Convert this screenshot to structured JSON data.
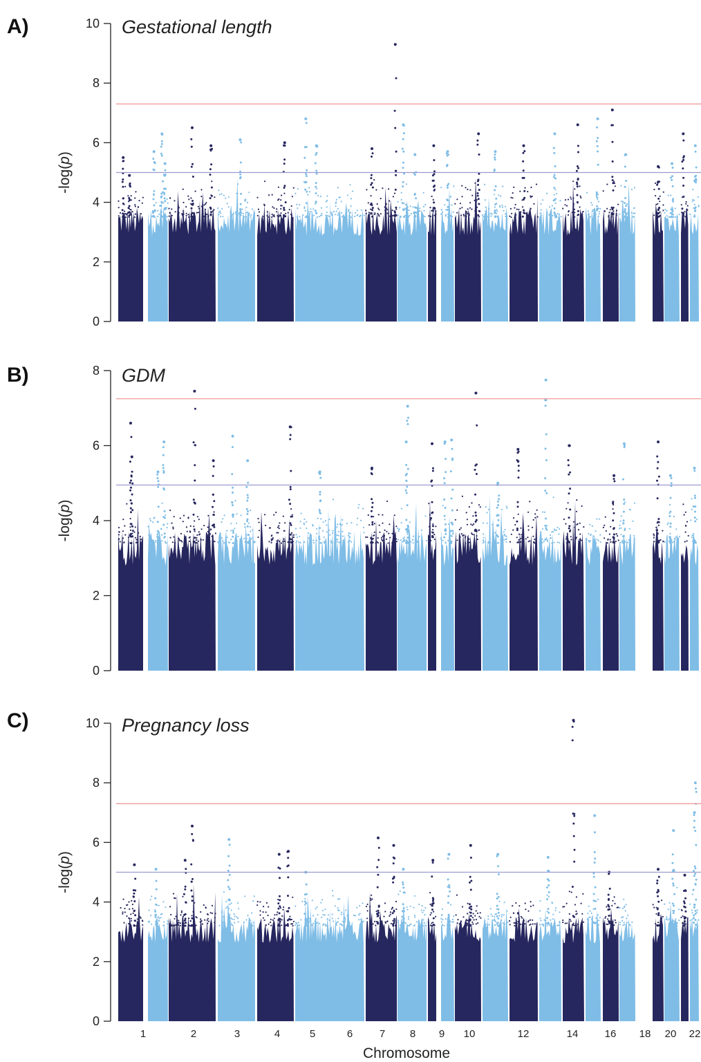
{
  "figure": {
    "xlabel": "Chromosome",
    "chromosome_tick_labels": [
      "1",
      "2",
      "3",
      "4",
      "5",
      "6",
      "7",
      "8",
      "9",
      "10",
      "12",
      "14",
      "16",
      "18",
      "20",
      "22"
    ]
  },
  "colors": {
    "dark_points": "#27275f",
    "light_points": "#7fbde6",
    "genome_wide_line": "#f2a0a0",
    "suggestive_line": "#9a9acf",
    "axis": "#222222"
  },
  "chart_data": [
    {
      "type": "scatter",
      "panel_letter": "A)",
      "title": "Gestational length",
      "xlabel": "Chromosome",
      "ylabel": "-log(p)",
      "ylim": [
        0,
        10
      ],
      "yticks": [
        0,
        2,
        4,
        6,
        8,
        10
      ],
      "genome_wide_threshold": 7.3,
      "suggestive_threshold": 5.0,
      "chromosome_background_height": 3.5,
      "peaks": [
        {
          "chr": 1,
          "pos": 0.2,
          "y": 5.5
        },
        {
          "chr": 1,
          "pos": 0.45,
          "y": 4.9
        },
        {
          "chr": 2,
          "pos": 0.3,
          "y": 5.7
        },
        {
          "chr": 2,
          "pos": 0.7,
          "y": 6.3
        },
        {
          "chr": 2,
          "pos": 0.85,
          "y": 5.3
        },
        {
          "chr": 3,
          "pos": 0.5,
          "y": 6.5
        },
        {
          "chr": 3,
          "pos": 0.9,
          "y": 5.9
        },
        {
          "chr": 4,
          "pos": 0.6,
          "y": 6.1
        },
        {
          "chr": 5,
          "pos": 0.75,
          "y": 6.0
        },
        {
          "chr": 6,
          "pos": 0.3,
          "y": 6.8
        },
        {
          "chr": 6,
          "pos": 0.6,
          "y": 5.9
        },
        {
          "chr": 7,
          "pos": 0.2,
          "y": 5.8
        },
        {
          "chr": 7,
          "pos": 0.95,
          "y": 9.3
        },
        {
          "chr": 8,
          "pos": 0.2,
          "y": 6.6
        },
        {
          "chr": 8,
          "pos": 0.6,
          "y": 5.6
        },
        {
          "chr": 9,
          "pos": 0.7,
          "y": 5.9
        },
        {
          "chr": 10,
          "pos": 0.5,
          "y": 5.7
        },
        {
          "chr": 11,
          "pos": 0.9,
          "y": 6.3
        },
        {
          "chr": 12,
          "pos": 0.5,
          "y": 5.7
        },
        {
          "chr": 13,
          "pos": 0.5,
          "y": 5.9
        },
        {
          "chr": 14,
          "pos": 0.7,
          "y": 6.3
        },
        {
          "chr": 15,
          "pos": 0.7,
          "y": 6.6
        },
        {
          "chr": 16,
          "pos": 0.8,
          "y": 6.8
        },
        {
          "chr": 17,
          "pos": 0.6,
          "y": 7.1
        },
        {
          "chr": 18,
          "pos": 0.4,
          "y": 5.6
        },
        {
          "chr": 19,
          "pos": 0.5,
          "y": 5.2
        },
        {
          "chr": 20,
          "pos": 0.5,
          "y": 5.3
        },
        {
          "chr": 21,
          "pos": 0.3,
          "y": 6.3
        },
        {
          "chr": 22,
          "pos": 0.6,
          "y": 5.9
        }
      ]
    },
    {
      "type": "scatter",
      "panel_letter": "B)",
      "title": "GDM",
      "xlabel": "Chromosome",
      "ylabel": "-log(p)",
      "ylim": [
        0,
        8
      ],
      "yticks": [
        0,
        2,
        4,
        6,
        8
      ],
      "genome_wide_threshold": 7.25,
      "suggestive_threshold": 4.95,
      "chromosome_background_height": 3.4,
      "peaks": [
        {
          "chr": 1,
          "pos": 0.5,
          "y": 6.6
        },
        {
          "chr": 1,
          "pos": 0.55,
          "y": 5.7
        },
        {
          "chr": 2,
          "pos": 0.5,
          "y": 5.3
        },
        {
          "chr": 2,
          "pos": 0.8,
          "y": 6.1
        },
        {
          "chr": 3,
          "pos": 0.55,
          "y": 7.45
        },
        {
          "chr": 3,
          "pos": 0.95,
          "y": 5.6
        },
        {
          "chr": 4,
          "pos": 0.4,
          "y": 6.25
        },
        {
          "chr": 4,
          "pos": 0.8,
          "y": 5.6
        },
        {
          "chr": 5,
          "pos": 0.9,
          "y": 6.5
        },
        {
          "chr": 6,
          "pos": 0.7,
          "y": 5.3
        },
        {
          "chr": 7,
          "pos": 0.2,
          "y": 5.4
        },
        {
          "chr": 8,
          "pos": 0.35,
          "y": 7.05
        },
        {
          "chr": 8,
          "pos": 0.3,
          "y": 6.1
        },
        {
          "chr": 9,
          "pos": 0.5,
          "y": 6.05
        },
        {
          "chr": 10,
          "pos": 0.3,
          "y": 6.1
        },
        {
          "chr": 10,
          "pos": 0.8,
          "y": 6.15
        },
        {
          "chr": 11,
          "pos": 0.8,
          "y": 7.4
        },
        {
          "chr": 12,
          "pos": 0.6,
          "y": 5.0
        },
        {
          "chr": 13,
          "pos": 0.3,
          "y": 5.9
        },
        {
          "chr": 14,
          "pos": 0.3,
          "y": 7.75
        },
        {
          "chr": 15,
          "pos": 0.3,
          "y": 6.0
        },
        {
          "chr": 17,
          "pos": 0.7,
          "y": 5.2
        },
        {
          "chr": 18,
          "pos": 0.3,
          "y": 6.05
        },
        {
          "chr": 19,
          "pos": 0.5,
          "y": 6.1
        },
        {
          "chr": 20,
          "pos": 0.4,
          "y": 5.2
        },
        {
          "chr": 22,
          "pos": 0.5,
          "y": 5.4
        }
      ]
    },
    {
      "type": "scatter",
      "panel_letter": "C)",
      "title": "Pregnancy loss",
      "xlabel": "Chromosome",
      "ylabel": "-log(p)",
      "ylim": [
        0,
        10
      ],
      "yticks": [
        0,
        2,
        4,
        6,
        8,
        10
      ],
      "genome_wide_threshold": 7.3,
      "suggestive_threshold": 5.0,
      "chromosome_background_height": 3.2,
      "peaks": [
        {
          "chr": 1,
          "pos": 0.65,
          "y": 5.25
        },
        {
          "chr": 2,
          "pos": 0.4,
          "y": 5.1
        },
        {
          "chr": 3,
          "pos": 0.5,
          "y": 6.55
        },
        {
          "chr": 3,
          "pos": 0.35,
          "y": 5.4
        },
        {
          "chr": 4,
          "pos": 0.3,
          "y": 6.1
        },
        {
          "chr": 5,
          "pos": 0.6,
          "y": 5.6
        },
        {
          "chr": 5,
          "pos": 0.85,
          "y": 5.7
        },
        {
          "chr": 6,
          "pos": 0.3,
          "y": 5.0
        },
        {
          "chr": 7,
          "pos": 0.4,
          "y": 6.15
        },
        {
          "chr": 7,
          "pos": 0.9,
          "y": 5.9
        },
        {
          "chr": 8,
          "pos": 0.2,
          "y": 5.1
        },
        {
          "chr": 9,
          "pos": 0.6,
          "y": 5.4
        },
        {
          "chr": 10,
          "pos": 0.6,
          "y": 5.6
        },
        {
          "chr": 11,
          "pos": 0.6,
          "y": 5.9
        },
        {
          "chr": 12,
          "pos": 0.6,
          "y": 5.6
        },
        {
          "chr": 14,
          "pos": 0.4,
          "y": 5.5
        },
        {
          "chr": 15,
          "pos": 0.5,
          "y": 10.1
        },
        {
          "chr": 16,
          "pos": 0.6,
          "y": 6.9
        },
        {
          "chr": 17,
          "pos": 0.4,
          "y": 5.0
        },
        {
          "chr": 19,
          "pos": 0.5,
          "y": 5.1
        },
        {
          "chr": 20,
          "pos": 0.6,
          "y": 6.4
        },
        {
          "chr": 21,
          "pos": 0.5,
          "y": 4.9
        },
        {
          "chr": 22,
          "pos": 0.6,
          "y": 8.0
        },
        {
          "chr": 22,
          "pos": 0.5,
          "y": 7.0
        }
      ]
    }
  ]
}
